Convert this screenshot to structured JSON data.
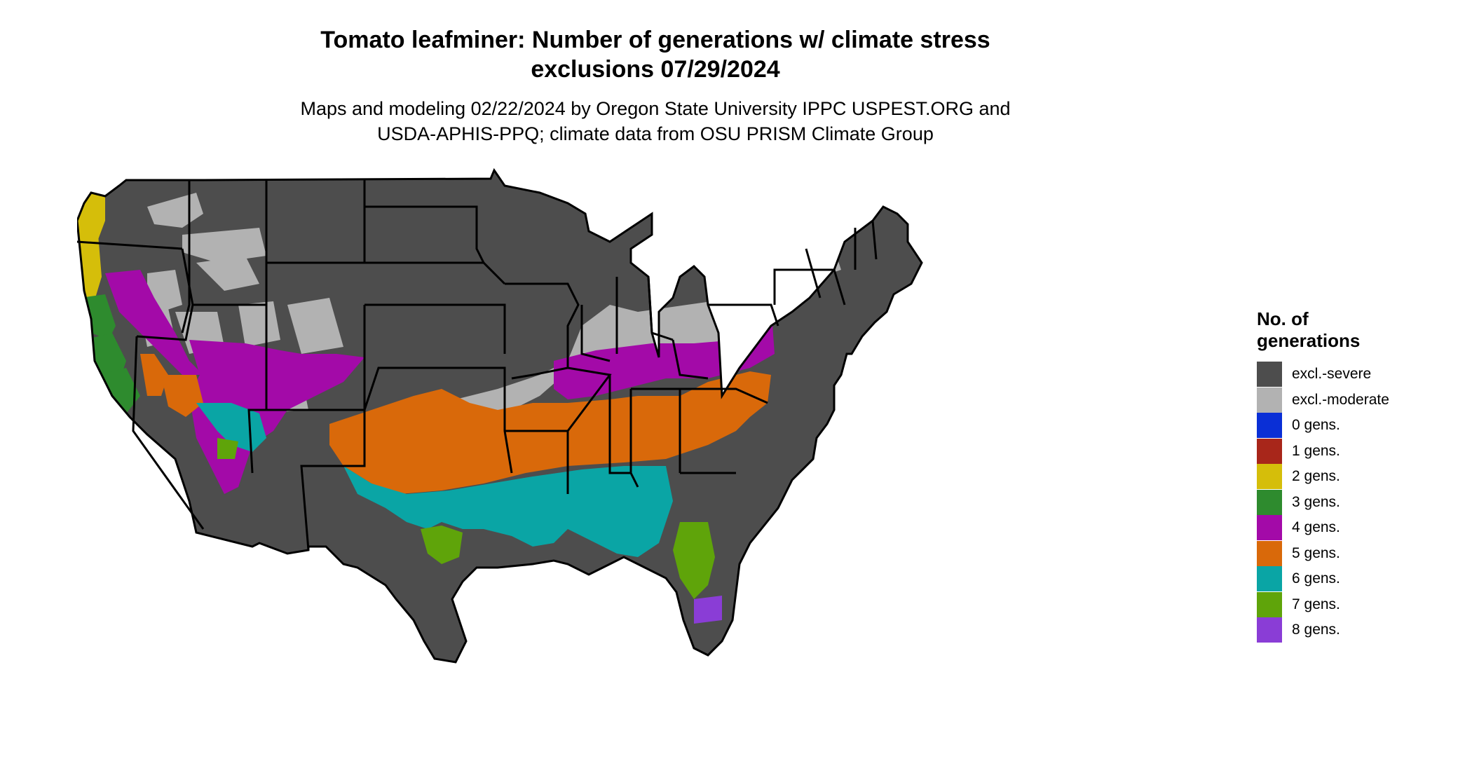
{
  "title": {
    "line1": "Tomato leafminer: Number of generations w/ climate stress",
    "line2": "exclusions 07/29/2024"
  },
  "subtitle": {
    "line1": "Maps and modeling 02/22/2024 by Oregon State University IPPC USPEST.ORG and",
    "line2": "USDA-APHIS-PPQ; climate data from OSU PRISM Climate Group"
  },
  "legend": {
    "title_line1": "No. of",
    "title_line2": "generations",
    "items": [
      {
        "label": "excl.-severe",
        "color": "#4d4d4d"
      },
      {
        "label": "excl.-moderate",
        "color": "#b2b2b2"
      },
      {
        "label": "0 gens.",
        "color": "#0a2fd6"
      },
      {
        "label": "1 gens.",
        "color": "#a8261a"
      },
      {
        "label": "2 gens.",
        "color": "#d5be0a"
      },
      {
        "label": "3 gens.",
        "color": "#2e8b2e"
      },
      {
        "label": "4 gens.",
        "color": "#a30aa8"
      },
      {
        "label": "5 gens.",
        "color": "#d9690a"
      },
      {
        "label": "6 gens.",
        "color": "#0aa5a5"
      },
      {
        "label": "7 gens.",
        "color": "#5fa40a"
      },
      {
        "label": "8 gens.",
        "color": "#8a3dd6"
      }
    ]
  }
}
